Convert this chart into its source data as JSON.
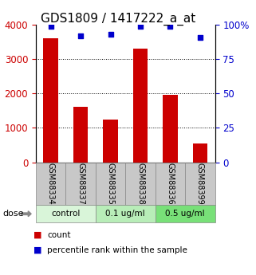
{
  "title": "GDS1809 / 1417222_a_at",
  "samples": [
    "GSM88334",
    "GSM88337",
    "GSM88335",
    "GSM88338",
    "GSM88336",
    "GSM88399"
  ],
  "counts": [
    3600,
    1620,
    1250,
    3300,
    1950,
    550
  ],
  "percentiles": [
    99,
    92,
    93,
    99,
    99,
    91
  ],
  "groups": [
    {
      "label": "control",
      "indices": [
        0,
        1
      ],
      "color": "#d9f5d9"
    },
    {
      "label": "0.1 ug/ml",
      "indices": [
        2,
        3
      ],
      "color": "#b8edb8"
    },
    {
      "label": "0.5 ug/ml",
      "indices": [
        4,
        5
      ],
      "color": "#78e078"
    }
  ],
  "bar_color": "#cc0000",
  "dot_color": "#0000cc",
  "left_ylim": [
    0,
    4000
  ],
  "right_ylim": [
    0,
    100
  ],
  "left_yticks": [
    0,
    1000,
    2000,
    3000,
    4000
  ],
  "right_yticks": [
    0,
    25,
    50,
    75,
    100
  ],
  "right_yticklabels": [
    "0",
    "25",
    "50",
    "75",
    "100%"
  ],
  "grid_values": [
    1000,
    2000,
    3000
  ],
  "label_count": "count",
  "label_percentile": "percentile rank within the sample",
  "dose_label": "dose",
  "bar_axis_color": "#cc0000",
  "right_tick_color": "#0000cc",
  "sample_box_color": "#c8c8c8",
  "title_fontsize": 11,
  "tick_fontsize": 8.5
}
